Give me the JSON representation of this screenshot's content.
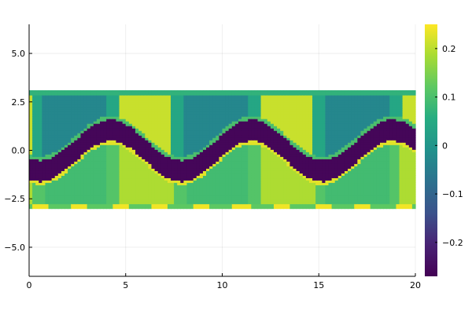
{
  "chart_data": {
    "type": "heatmap",
    "title": "",
    "xlabel": "",
    "ylabel": "",
    "xlim": [
      0,
      20
    ],
    "ylim": [
      -6.5,
      6.5
    ],
    "grid": true,
    "x_ticks": [
      0,
      5,
      10,
      15,
      20
    ],
    "x_tick_labels": [
      "0",
      "5",
      "10",
      "15",
      "20"
    ],
    "y_ticks": [
      -5.0,
      -2.5,
      0.0,
      2.5,
      5.0
    ],
    "y_tick_labels": [
      "−5.0",
      "−2.5",
      "0.0",
      "2.5",
      "5.0"
    ],
    "data_extent": {
      "x": [
        0,
        20
      ],
      "y": [
        -3.0,
        3.1
      ]
    },
    "grid_size": {
      "nx": 120,
      "ny": 50
    },
    "colorscale": "viridis",
    "color_range": [
      -0.27,
      0.25
    ],
    "colorbar": {
      "ticks": [
        -0.2,
        -0.1,
        0,
        0.1,
        0.2
      ],
      "tick_labels": [
        "−0.2",
        "−0.1",
        "0",
        "0.1",
        "0.2"
      ]
    }
  }
}
